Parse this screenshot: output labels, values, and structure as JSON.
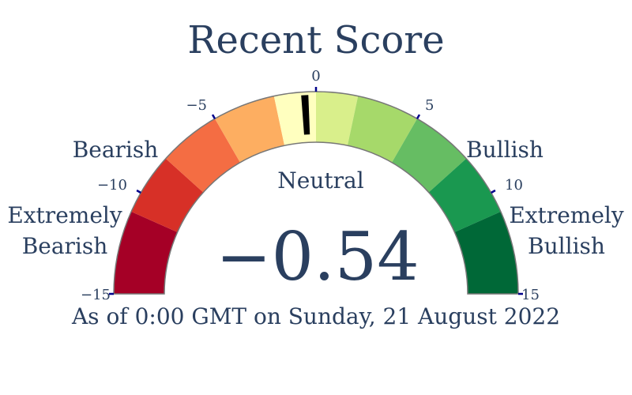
{
  "chart_data": {
    "type": "gauge",
    "title": "Recent Score",
    "value": -0.54,
    "value_text": "−0.54",
    "range": [
      -15,
      15
    ],
    "ticks": [
      {
        "value": -15,
        "label": "−15"
      },
      {
        "value": -10,
        "label": "−10"
      },
      {
        "value": -5,
        "label": "−5"
      },
      {
        "value": 0,
        "label": "0"
      },
      {
        "value": 5,
        "label": "5"
      },
      {
        "value": 10,
        "label": "10"
      },
      {
        "value": 15,
        "label": "15"
      }
    ],
    "steps": [
      {
        "from": -15,
        "to": -11,
        "color": "#a50026"
      },
      {
        "from": -11,
        "to": -8,
        "color": "#d73027"
      },
      {
        "from": -8,
        "to": -5,
        "color": "#f46d43"
      },
      {
        "from": -5,
        "to": -2,
        "color": "#fdae61"
      },
      {
        "from": -2,
        "to": 0,
        "color": "#ffffbf"
      },
      {
        "from": 0,
        "to": 2,
        "color": "#d9ef8b"
      },
      {
        "from": 2,
        "to": 5,
        "color": "#a6d96a"
      },
      {
        "from": 5,
        "to": 8,
        "color": "#66bd63"
      },
      {
        "from": 8,
        "to": 11,
        "color": "#1a9850"
      },
      {
        "from": 11,
        "to": 15,
        "color": "#006837"
      }
    ],
    "band_labels": {
      "extremely_bearish": [
        "Extremely",
        "Bearish"
      ],
      "bearish": "Bearish",
      "neutral": "Neutral",
      "bullish": "Bullish",
      "extremely_bullish": [
        "Extremely",
        "Bullish"
      ]
    },
    "needle_color": "#000000",
    "tick_color": "#00008b",
    "footnote": "As of 0:00 GMT on Sunday, 21 August 2022"
  }
}
